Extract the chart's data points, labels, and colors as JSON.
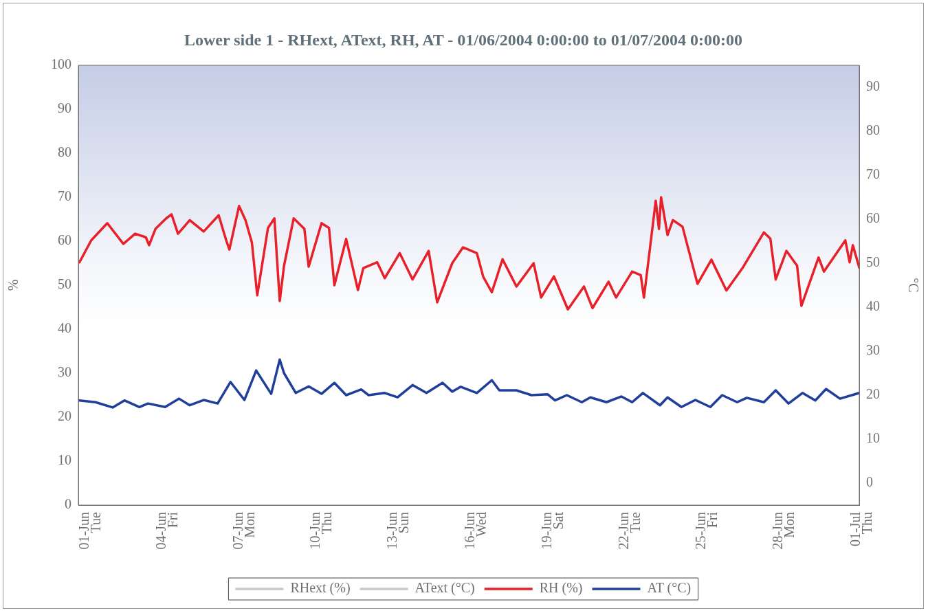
{
  "chart_data": {
    "type": "line",
    "title": "Lower side 1 - RHext, AText, RH, AT - 01/06/2004 0:00:00 to 01/07/2004 0:00:00",
    "ylabel": "%",
    "y2label": "°C",
    "xlim": [
      "2004-05-31T18:00",
      "2004-07-01T03:00"
    ],
    "xticks": [
      {
        "value": "2004-06-01",
        "label": "01-Jun\nTue"
      },
      {
        "value": "2004-06-04",
        "label": "04-Jun\nFri"
      },
      {
        "value": "2004-06-07",
        "label": "07-Jun\nMon"
      },
      {
        "value": "2004-06-10",
        "label": "10-Jun\nThu"
      },
      {
        "value": "2004-06-13",
        "label": "13-Jun\nSun"
      },
      {
        "value": "2004-06-16",
        "label": "16-Jun\nWed"
      },
      {
        "value": "2004-06-19",
        "label": "19-Jun\nSat"
      },
      {
        "value": "2004-06-22",
        "label": "22-Jun\nTue"
      },
      {
        "value": "2004-06-25",
        "label": "25-Jun\nFri"
      },
      {
        "value": "2004-06-28",
        "label": "28-Jun\nMon"
      },
      {
        "value": "2004-07-01",
        "label": "01-Jul\nThu"
      }
    ],
    "ylim": [
      0,
      100
    ],
    "yticks": [
      0,
      10,
      20,
      30,
      40,
      50,
      60,
      70,
      80,
      90,
      100
    ],
    "y2lim": [
      -5,
      95
    ],
    "y2ticks": [
      0,
      10,
      20,
      30,
      40,
      50,
      60,
      70,
      80,
      90
    ],
    "grid": false,
    "legend": "bottom",
    "marker": "none",
    "line_style": "solid",
    "series": [
      {
        "name": "RHext (%)",
        "color": "#c8c8c8"
      },
      {
        "name": "AText (°C)",
        "color": "#c8c8c8",
        "axis": "y2"
      },
      {
        "name": "RH (%)",
        "color": "#e8202a",
        "x": [
          "2004-05-31T19:00",
          "2004-06-01T06:00",
          "2004-06-01T21:00",
          "2004-06-02T12:00",
          "2004-06-02T23:00",
          "2004-06-03T09:00",
          "2004-06-03T12:00",
          "2004-06-03T18:00",
          "2004-06-04T04:00",
          "2004-06-04T09:00",
          "2004-06-04T15:00",
          "2004-06-05T02:00",
          "2004-06-05T15:00",
          "2004-06-06T05:00",
          "2004-06-06T12:00",
          "2004-06-06T15:00",
          "2004-06-07T00:00",
          "2004-06-07T06:00",
          "2004-06-07T12:00",
          "2004-06-07T17:00",
          "2004-06-08T03:00",
          "2004-06-08T09:00",
          "2004-06-08T14:00",
          "2004-06-08T18:00",
          "2004-06-09T03:00",
          "2004-06-09T13:00",
          "2004-06-09T17:00",
          "2004-06-10T05:00",
          "2004-06-10T12:00",
          "2004-06-10T17:00",
          "2004-06-11T04:00",
          "2004-06-11T15:00",
          "2004-06-11T20:00",
          "2004-06-12T09:00",
          "2004-06-12T16:00",
          "2004-06-13T06:00",
          "2004-06-13T18:00",
          "2004-06-14T09:00",
          "2004-06-14T17:00",
          "2004-06-15T07:00",
          "2004-06-15T17:00",
          "2004-06-16T06:00",
          "2004-06-16T12:00",
          "2004-06-16T20:00",
          "2004-06-17T06:00",
          "2004-06-17T19:00",
          "2004-06-18T11:00",
          "2004-06-18T18:00",
          "2004-06-19T06:00",
          "2004-06-19T19:00",
          "2004-06-20T10:00",
          "2004-06-20T18:00",
          "2004-06-21T09:00",
          "2004-06-21T16:00",
          "2004-06-22T07:00",
          "2004-06-22T15:00",
          "2004-06-22T18:00",
          "2004-06-23T05:00",
          "2004-06-23T08:00",
          "2004-06-23T10:00",
          "2004-06-23T16:00",
          "2004-06-23T21:00",
          "2004-06-24T06:00",
          "2004-06-24T20:00",
          "2004-06-25T09:00",
          "2004-06-25T23:00",
          "2004-06-26T14:00",
          "2004-06-27T10:00",
          "2004-06-27T16:00",
          "2004-06-27T21:00",
          "2004-06-28T07:00",
          "2004-06-28T17:00",
          "2004-06-28T21:00",
          "2004-06-29T13:00",
          "2004-06-29T18:00",
          "2004-06-30T14:00",
          "2004-06-30T18:00",
          "2004-06-30T21:00",
          "2004-07-01T03:00"
        ],
        "values": [
          55.2,
          60.2,
          64.1,
          59.4,
          61.7,
          60.9,
          59.1,
          62.8,
          65.2,
          66.1,
          61.7,
          64.8,
          62.2,
          65.9,
          60.2,
          58.1,
          68.0,
          64.8,
          59.7,
          47.7,
          63.0,
          65.2,
          46.4,
          54.4,
          65.2,
          62.8,
          54.2,
          64.1,
          63.0,
          50.0,
          60.5,
          48.9,
          53.9,
          55.2,
          51.6,
          57.3,
          51.3,
          57.8,
          46.1,
          55.0,
          58.6,
          57.3,
          51.9,
          48.4,
          55.9,
          49.7,
          55.0,
          47.2,
          52.0,
          44.5,
          49.7,
          44.8,
          50.8,
          47.2,
          53.1,
          52.3,
          47.2,
          69.2,
          62.8,
          70.0,
          61.4,
          64.8,
          63.3,
          50.3,
          55.8,
          48.8,
          53.9,
          62.0,
          60.6,
          51.3,
          57.8,
          54.4,
          45.3,
          56.3,
          53.1,
          60.2,
          55.2,
          59.1,
          54.0
        ]
      },
      {
        "name": "AT (°C)",
        "color": "#1f3f9a",
        "axis": "y2",
        "x": [
          "2004-05-31T19:00",
          "2004-06-01T10:00",
          "2004-06-02T02:00",
          "2004-06-02T13:00",
          "2004-06-03T03:00",
          "2004-06-03T11:00",
          "2004-06-04T03:00",
          "2004-06-04T16:00",
          "2004-06-05T02:00",
          "2004-06-05T15:00",
          "2004-06-06T04:00",
          "2004-06-06T16:00",
          "2004-06-07T05:00",
          "2004-06-07T16:00",
          "2004-06-08T06:00",
          "2004-06-08T14:00",
          "2004-06-08T18:00",
          "2004-06-09T05:00",
          "2004-06-09T17:00",
          "2004-06-10T05:00",
          "2004-06-10T17:00",
          "2004-06-11T04:00",
          "2004-06-11T18:00",
          "2004-06-12T01:00",
          "2004-06-12T16:00",
          "2004-06-13T04:00",
          "2004-06-13T18:00",
          "2004-06-14T07:00",
          "2004-06-14T22:00",
          "2004-06-15T07:00",
          "2004-06-15T15:00",
          "2004-06-16T06:00",
          "2004-06-16T20:00",
          "2004-06-17T03:00",
          "2004-06-17T19:00",
          "2004-06-18T09:00",
          "2004-06-19T00:00",
          "2004-06-19T07:00",
          "2004-06-19T18:00",
          "2004-06-20T08:00",
          "2004-06-20T16:00",
          "2004-06-21T07:00",
          "2004-06-21T21:00",
          "2004-06-22T07:00",
          "2004-06-22T17:00",
          "2004-06-23T09:00",
          "2004-06-23T16:00",
          "2004-06-24T05:00",
          "2004-06-24T18:00",
          "2004-06-25T08:00",
          "2004-06-25T19:00",
          "2004-06-26T09:00",
          "2004-06-26T18:00",
          "2004-06-27T10:00",
          "2004-06-27T21:00",
          "2004-06-28T09:00",
          "2004-06-28T22:00",
          "2004-06-29T10:00",
          "2004-06-29T20:00",
          "2004-06-30T09:00",
          "2004-07-01T03:00"
        ],
        "values": [
          18.8,
          18.4,
          17.2,
          18.8,
          17.3,
          18.1,
          17.3,
          19.2,
          17.7,
          18.9,
          18.1,
          23.0,
          18.9,
          25.6,
          20.3,
          28.1,
          25.0,
          20.5,
          22.0,
          20.3,
          22.8,
          20.0,
          21.3,
          20.0,
          20.5,
          19.5,
          22.3,
          20.5,
          22.8,
          20.8,
          21.9,
          20.5,
          23.4,
          21.1,
          21.1,
          20.0,
          20.2,
          18.8,
          20.0,
          18.4,
          19.5,
          18.4,
          19.7,
          18.4,
          20.5,
          17.7,
          19.5,
          17.3,
          18.9,
          17.3,
          20.0,
          18.4,
          19.4,
          18.4,
          21.1,
          18.1,
          20.5,
          18.8,
          21.4,
          19.2,
          20.5
        ]
      }
    ]
  }
}
